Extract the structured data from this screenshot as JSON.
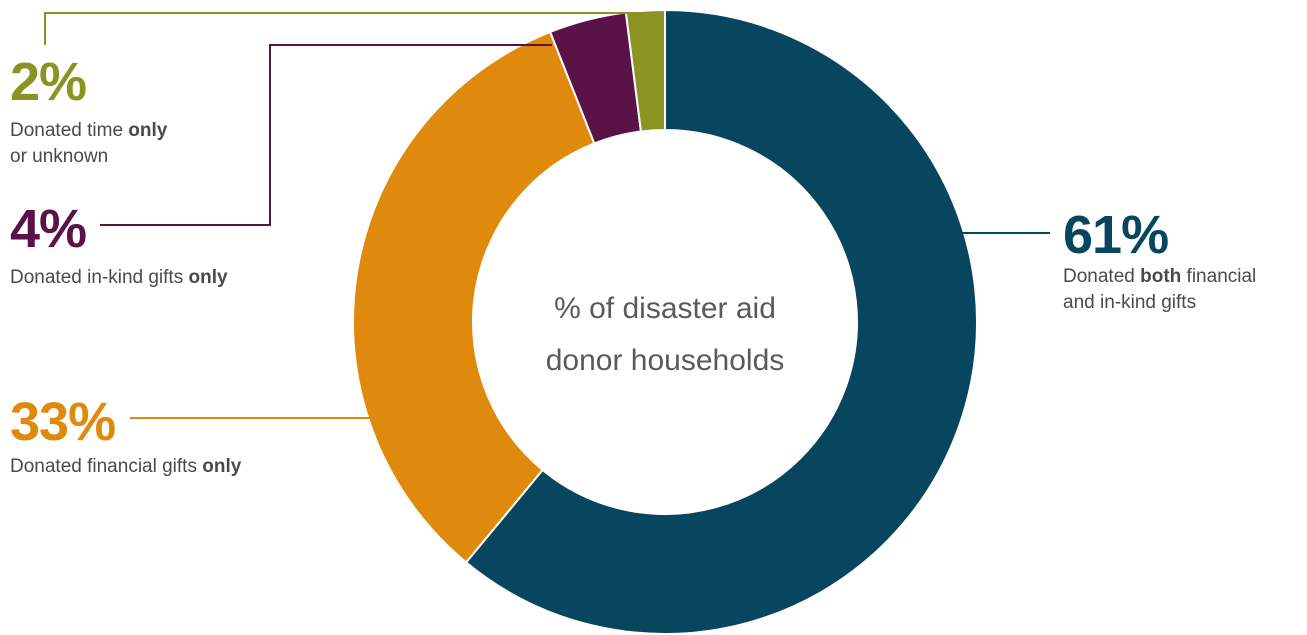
{
  "chart_data": {
    "type": "pie",
    "variant": "donut",
    "center_label": [
      "% of disaster aid",
      "donor households"
    ],
    "slices": [
      {
        "id": "both",
        "value": 61,
        "percent_label": "61%",
        "color": "#08455f",
        "description": [
          [
            {
              "text": "Donated "
            },
            {
              "text": "both",
              "bold": true
            },
            {
              "text": " financial"
            }
          ],
          [
            {
              "text": "and in-kind gifts"
            }
          ]
        ]
      },
      {
        "id": "financial",
        "value": 33,
        "percent_label": "33%",
        "color": "#df8a0d",
        "description": [
          [
            {
              "text": "Donated financial gifts "
            },
            {
              "text": "only",
              "bold": true
            }
          ]
        ]
      },
      {
        "id": "inkind",
        "value": 4,
        "percent_label": "4%",
        "color": "#5a1347",
        "description": [
          [
            {
              "text": "Donated in-kind gifts "
            },
            {
              "text": "only",
              "bold": true
            }
          ]
        ]
      },
      {
        "id": "time",
        "value": 2,
        "percent_label": "2%",
        "color": "#8b9422",
        "description": [
          [
            {
              "text": "Donated time "
            },
            {
              "text": "only",
              "bold": true
            }
          ],
          [
            {
              "text": "or unknown"
            }
          ]
        ]
      }
    ]
  }
}
